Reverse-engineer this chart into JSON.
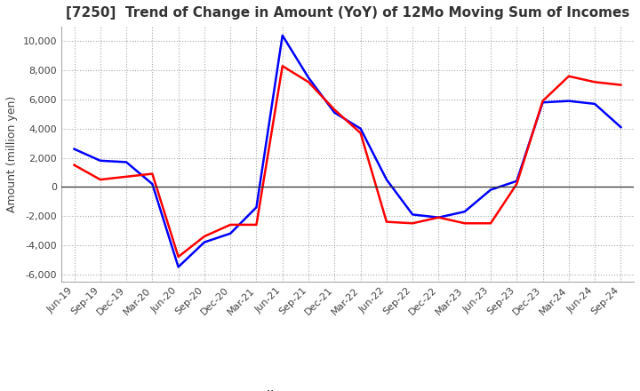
{
  "title": "[7250]  Trend of Change in Amount (YoY) of 12Mo Moving Sum of Incomes",
  "ylabel": "Amount (million yen)",
  "ylim": [
    -6500,
    11000
  ],
  "yticks": [
    -6000,
    -4000,
    -2000,
    0,
    2000,
    4000,
    6000,
    8000,
    10000
  ],
  "x_labels": [
    "Jun-19",
    "Sep-19",
    "Dec-19",
    "Mar-20",
    "Jun-20",
    "Sep-20",
    "Dec-20",
    "Mar-21",
    "Jun-21",
    "Sep-21",
    "Dec-21",
    "Mar-22",
    "Jun-22",
    "Sep-22",
    "Dec-22",
    "Mar-23",
    "Jun-23",
    "Sep-23",
    "Dec-23",
    "Mar-24",
    "Jun-24",
    "Sep-24"
  ],
  "ordinary_income": [
    2600,
    1800,
    1700,
    200,
    -5500,
    -3800,
    -3200,
    -1400,
    10400,
    7500,
    5100,
    4000,
    500,
    -1900,
    -2100,
    -1700,
    -200,
    400,
    5800,
    5900,
    5700,
    4100
  ],
  "net_income": [
    1500,
    500,
    700,
    900,
    -4800,
    -3400,
    -2600,
    -2600,
    8300,
    7200,
    5300,
    3700,
    -2400,
    -2500,
    -2100,
    -2500,
    -2500,
    200,
    5900,
    7600,
    7200,
    7000
  ],
  "ordinary_color": "#0000ff",
  "net_color": "#ff0000",
  "background_color": "#ffffff",
  "grid_color": "#aaaaaa",
  "title_color": "#333333"
}
